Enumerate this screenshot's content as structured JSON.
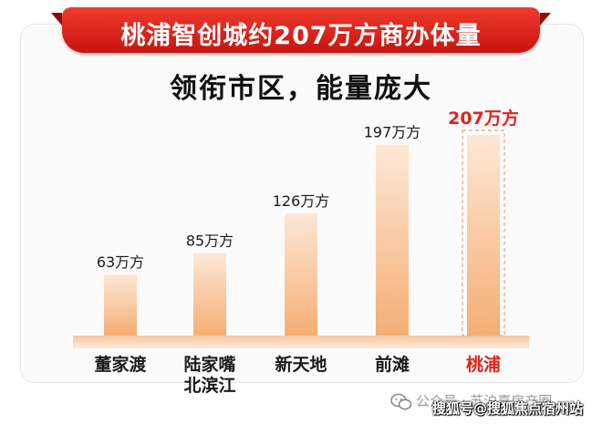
{
  "banner_title": "桃浦智创城约207万方商办体量",
  "subtitle": "领衔市区，能量庞大",
  "chart_data": {
    "type": "bar",
    "categories": [
      "董家渡",
      "陆家嘴北滨江",
      "新天地",
      "前滩",
      "桃浦"
    ],
    "category_lines": [
      [
        "董家渡"
      ],
      [
        "陆家嘴",
        "北滨江"
      ],
      [
        "新天地"
      ],
      [
        "前滩"
      ],
      [
        "桃浦"
      ]
    ],
    "values": [
      63,
      85,
      126,
      197,
      207
    ],
    "value_labels": [
      "63万方",
      "85万方",
      "126万方",
      "197万方",
      "207万方"
    ],
    "unit": "万方",
    "highlight_index": 4,
    "ylim": [
      0,
      207
    ],
    "grid": false,
    "legend": "none"
  },
  "colors": {
    "banner": "#d9211a",
    "bar_top": "#fbe1cb",
    "bar_bottom": "#f4a96a",
    "highlight": "#e0241c",
    "label": "#1a1a1a"
  },
  "watermark": {
    "back_text": "公众号 · 苏沪嘉房产圈",
    "front_text": "搜狐号@搜狐焦点宿州站",
    "icon": "wechat-icon"
  }
}
